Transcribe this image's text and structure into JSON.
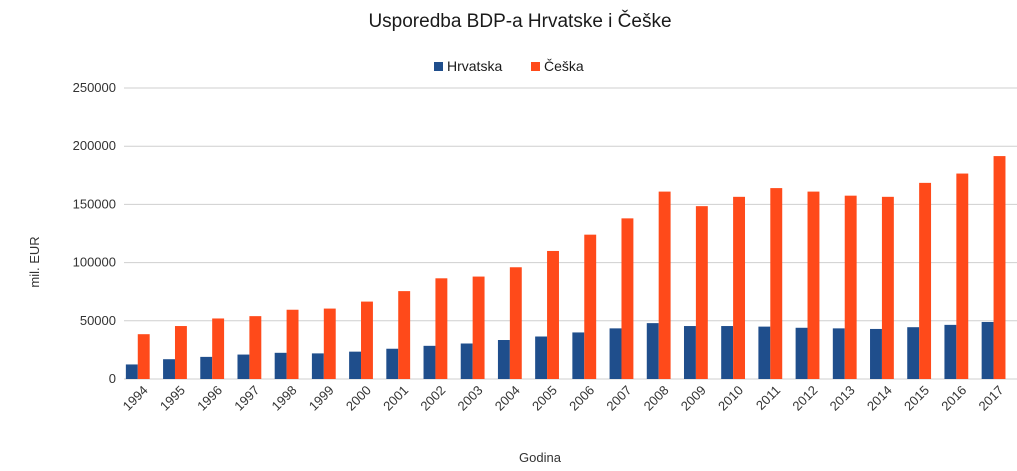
{
  "chart_data": {
    "type": "bar",
    "title": "Usporedba BDP-a Hrvatske i Češke",
    "xlabel": "Godina",
    "ylabel": "mil. EUR",
    "ylim": [
      0,
      250000
    ],
    "yticks": [
      0,
      50000,
      100000,
      150000,
      200000,
      250000
    ],
    "y_tick_labels": [
      "0",
      "50000",
      "100000",
      "150000",
      "200000",
      "250000"
    ],
    "grid": true,
    "legend_position": "top-center",
    "categories": [
      "1994",
      "1995",
      "1996",
      "1997",
      "1998",
      "1999",
      "2000",
      "2001",
      "2002",
      "2003",
      "2004",
      "2005",
      "2006",
      "2007",
      "2008",
      "2009",
      "2010",
      "2011",
      "2012",
      "2013",
      "2014",
      "2015",
      "2016",
      "2017"
    ],
    "series": [
      {
        "name": "Hrvatska",
        "color": "#1f4e8c",
        "values": [
          12500,
          17000,
          19000,
          21000,
          22500,
          22000,
          23500,
          26000,
          28500,
          30500,
          33500,
          36500,
          40000,
          43500,
          48000,
          45500,
          45500,
          45000,
          44000,
          43500,
          43000,
          44500,
          46500,
          49000
        ]
      },
      {
        "name": "Češka",
        "color": "#ff4a1a",
        "values": [
          38500,
          45500,
          52000,
          54000,
          59500,
          60500,
          66500,
          75500,
          86500,
          88000,
          96000,
          110000,
          124000,
          138000,
          161000,
          148500,
          156500,
          164000,
          161000,
          157500,
          156500,
          168500,
          176500,
          191500
        ]
      }
    ]
  }
}
